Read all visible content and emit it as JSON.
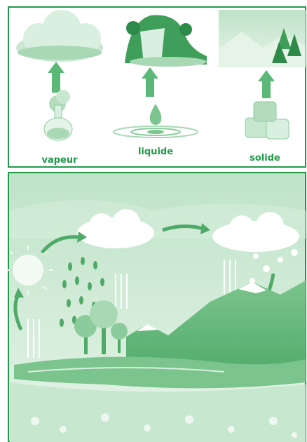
{
  "states": [
    {
      "label": "vapeur"
    },
    {
      "label": "liquide"
    },
    {
      "label": "solide"
    }
  ]
}
